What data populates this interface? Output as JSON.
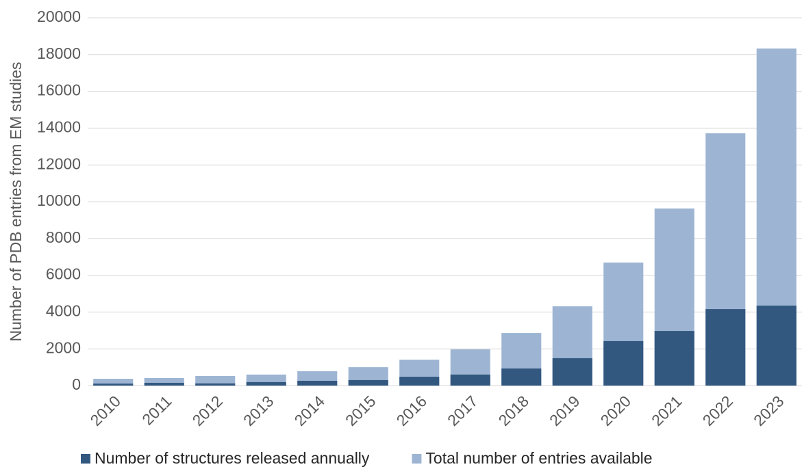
{
  "chart_data": {
    "type": "bar",
    "barmode": "overlay",
    "y_label": "Number of PDB entries from EM studies",
    "categories": [
      "2010",
      "2011",
      "2012",
      "2013",
      "2014",
      "2015",
      "2016",
      "2017",
      "2018",
      "2019",
      "2020",
      "2021",
      "2022",
      "2023"
    ],
    "series": [
      {
        "name": "Total number of entries available",
        "color": "#9db5d3",
        "values": [
          370,
          410,
          520,
          600,
          780,
          1000,
          1410,
          1970,
          2860,
          4310,
          6690,
          9630,
          13720,
          18330
        ]
      },
      {
        "name": "Number of structures released annually",
        "color": "#325880",
        "values": [
          110,
          150,
          120,
          190,
          260,
          300,
          480,
          600,
          930,
          1490,
          2420,
          2970,
          4160,
          4350
        ]
      }
    ],
    "legend_order": [
      1,
      0
    ],
    "ylim": [
      0,
      20000
    ],
    "yticks": [
      0,
      2000,
      4000,
      6000,
      8000,
      10000,
      12000,
      14000,
      16000,
      18000,
      20000
    ],
    "grid": true
  }
}
